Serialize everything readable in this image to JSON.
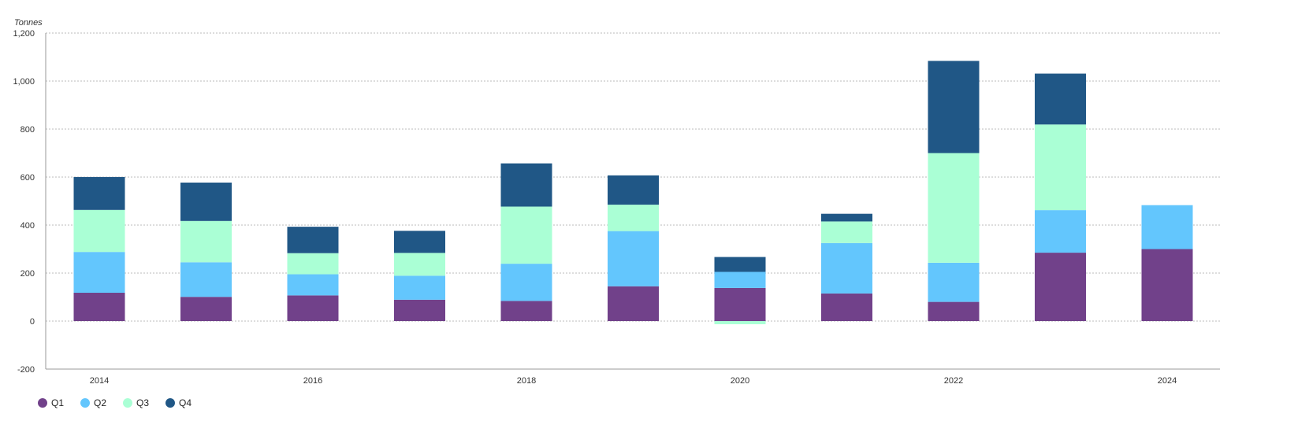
{
  "chart_data": {
    "type": "bar",
    "stacked": true,
    "ylabel": "Tonnes",
    "ylim": [
      -200,
      1200
    ],
    "yticks": [
      -200,
      0,
      200,
      400,
      600,
      800,
      1000,
      1200
    ],
    "ytick_labels": [
      "-200",
      "0",
      "200",
      "400",
      "600",
      "800",
      "1,000",
      "1,200"
    ],
    "categories": [
      "2014",
      "2015",
      "2016",
      "2017",
      "2018",
      "2019",
      "2020",
      "2021",
      "2022",
      "2023",
      "2024"
    ],
    "xtick_labels_shown": [
      "2014",
      "2016",
      "2018",
      "2020",
      "2022",
      "2024"
    ],
    "grid": true,
    "legend_position": "bottom-left",
    "series": [
      {
        "name": "Q1",
        "color": "#71418a",
        "values": [
          118,
          101,
          107,
          89,
          84,
          145,
          138,
          115,
          80,
          285,
          300
        ]
      },
      {
        "name": "Q2",
        "color": "#63c6fd",
        "values": [
          170,
          144,
          88,
          100,
          155,
          230,
          67,
          210,
          163,
          177,
          183
        ]
      },
      {
        "name": "Q3",
        "color": "#aaffd5",
        "values": [
          175,
          172,
          88,
          95,
          238,
          110,
          -13,
          90,
          457,
          357,
          0
        ]
      },
      {
        "name": "Q4",
        "color": "#205786",
        "values": [
          137,
          160,
          110,
          92,
          180,
          122,
          62,
          32,
          384,
          212,
          0
        ]
      }
    ]
  }
}
